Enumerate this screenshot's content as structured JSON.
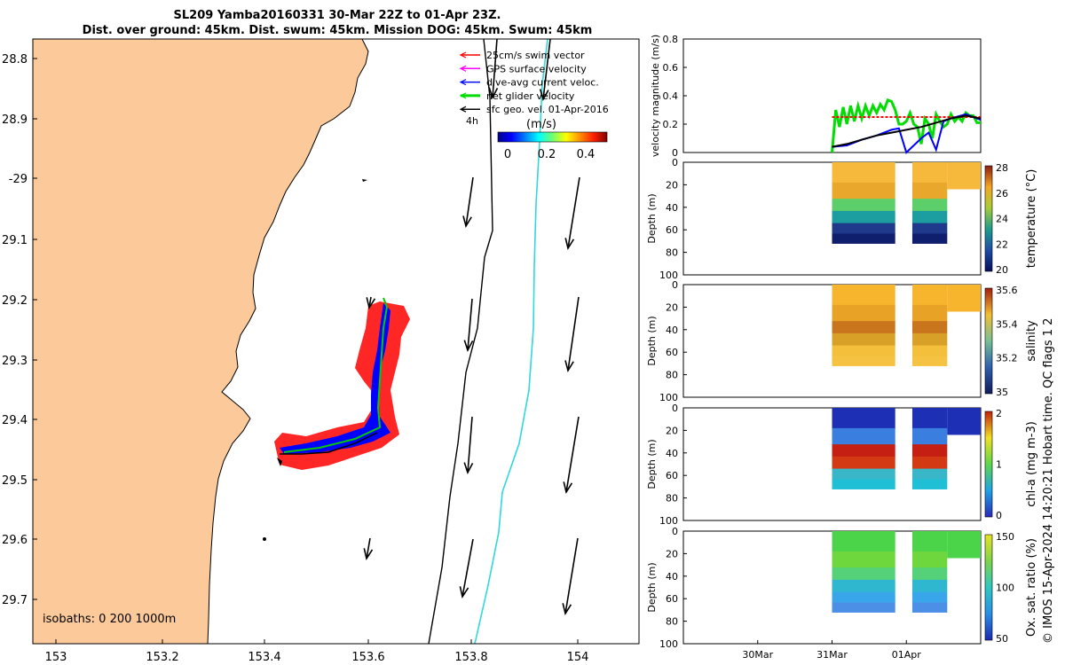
{
  "title_line1": "SL209 Yamba20160331 30-Mar 22Z to 01-Apr 23Z.",
  "title_line2": "Dist. over ground: 45km. Dist. swum: 45km. Mission DOG: 45km. Swum: 45km",
  "map": {
    "lat_ticks": [
      "28.8",
      "28.9",
      "-29",
      "29.1",
      "29.2",
      "29.3",
      "29.4",
      "29.5",
      "29.6",
      "29.7"
    ],
    "lon_ticks": [
      "153",
      "153.2",
      "153.4",
      "153.6",
      "153.8",
      "154"
    ],
    "legend": [
      "25cm/s swim vector",
      "GPS surface velocity",
      "dive-avg current veloc.",
      "net glider velocity",
      "sfc geo. vel. 01-Apr-2016"
    ],
    "legend_colors": [
      "#ff0000",
      "#ff00ff",
      "#0000ff",
      "#00dd00",
      "#000000"
    ],
    "time_label": "4h",
    "colorbar_unit": "(m/s)",
    "colorbar_ticks": [
      "0",
      "0.2",
      "0.4"
    ],
    "isobaths_label": "isobaths: 0   200  1000m",
    "land_color": "#fbc99a"
  },
  "chart_data": [
    {
      "type": "line",
      "ylabel": "velocity magnitude (m/s)",
      "ylim": [
        0,
        0.8
      ],
      "yticks": [
        "0",
        "0.2",
        "0.4",
        "0.6",
        "0.8"
      ],
      "series": [
        {
          "color": "#00dd00",
          "x": [
            31.0,
            31.05,
            31.1,
            31.15,
            31.2,
            31.25,
            31.3,
            31.35,
            31.4,
            31.45,
            31.5,
            31.55,
            31.6,
            31.65,
            31.7,
            31.75,
            31.8,
            31.85,
            31.9,
            31.95,
            32.0,
            32.05,
            32.1,
            32.15,
            32.2,
            32.25,
            32.3,
            32.35,
            32.4,
            32.45,
            32.5,
            32.55,
            32.6,
            32.65,
            32.7,
            32.75,
            32.8,
            32.85,
            32.9,
            32.95,
            33.0
          ],
          "y": [
            0.0,
            0.3,
            0.18,
            0.32,
            0.2,
            0.33,
            0.22,
            0.33,
            0.24,
            0.33,
            0.26,
            0.33,
            0.28,
            0.34,
            0.3,
            0.37,
            0.36,
            0.3,
            0.2,
            0.2,
            0.22,
            0.28,
            0.2,
            0.18,
            0.06,
            0.24,
            0.2,
            0.1,
            0.27,
            0.22,
            0.18,
            0.2,
            0.27,
            0.22,
            0.25,
            0.22,
            0.28,
            0.26,
            0.26,
            0.21,
            0.21
          ]
        },
        {
          "color": "#ff0000",
          "x": [
            31.0,
            31.5,
            32.0,
            32.5,
            33.0
          ],
          "y": [
            0.25,
            0.25,
            0.25,
            0.25,
            0.25
          ]
        },
        {
          "color": "#0000ff",
          "x": [
            31.0,
            31.2,
            31.4,
            31.6,
            31.8,
            31.9,
            32.0,
            32.1,
            32.2,
            32.3,
            32.4,
            32.5,
            32.6,
            32.8,
            33.0
          ],
          "y": [
            0.04,
            0.05,
            0.09,
            0.12,
            0.16,
            0.17,
            0.0,
            0.05,
            0.1,
            0.14,
            0.02,
            0.22,
            0.24,
            0.27,
            0.23
          ]
        },
        {
          "color": "#000000",
          "x": [
            31.0,
            31.2,
            31.4,
            31.6,
            31.8,
            32.0,
            32.2,
            32.4,
            32.6,
            32.8,
            33.0
          ],
          "y": [
            0.04,
            0.06,
            0.09,
            0.12,
            0.14,
            0.16,
            0.18,
            0.21,
            0.24,
            0.26,
            0.24
          ]
        }
      ]
    },
    {
      "type": "heatmap",
      "ylabel": "Depth (m)",
      "cbar_label": "temperature (°C)",
      "cbar_ticks": [
        "20",
        "22",
        "24",
        "26",
        "28"
      ]
    },
    {
      "type": "heatmap",
      "ylabel": "Depth (m)",
      "cbar_label": "salinity",
      "cbar_ticks": [
        "35",
        "35.2",
        "35.4",
        "35.6"
      ]
    },
    {
      "type": "heatmap",
      "ylabel": "Depth (m)",
      "cbar_label": "chl-a (mg m-3)",
      "cbar_ticks": [
        "0",
        "1",
        "2"
      ]
    },
    {
      "type": "heatmap",
      "ylabel": "Depth (m)",
      "cbar_label": "Ox. sat. ratio (%)",
      "cbar_ticks": [
        "50",
        "100",
        "150"
      ]
    }
  ],
  "depth_ticks": [
    "0",
    "20",
    "40",
    "60",
    "80",
    "100"
  ],
  "time_ticks": [
    "30Mar",
    "31Mar",
    "01Apr"
  ],
  "footer_note": "© IMOS 15-Apr-2024 14:20:21 Hobart time. QC flags 1  2"
}
